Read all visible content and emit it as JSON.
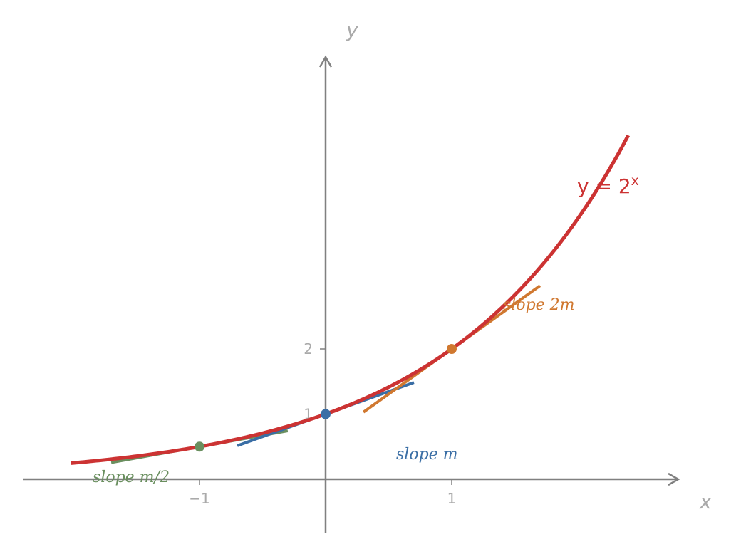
{
  "chart_data": {
    "type": "line",
    "title": "",
    "xlabel": "x",
    "ylabel": "y",
    "xlim": [
      -2.4,
      2.8
    ],
    "ylim": [
      -0.8,
      6.5
    ],
    "x_ticks": [
      {
        "value": -1,
        "label": "−1"
      },
      {
        "value": 1,
        "label": "1"
      }
    ],
    "y_ticks": [
      {
        "value": 1,
        "label": "1"
      },
      {
        "value": 2,
        "label": "2"
      }
    ],
    "curve": {
      "label_base": "y = 2",
      "label_exp": "x",
      "function": "2^x",
      "x_range": [
        -2.02,
        2.4
      ],
      "color": "#cc3333"
    },
    "tangents": [
      {
        "name": "slope m/2",
        "label": "slope m/2",
        "point": [
          -1,
          0.5
        ],
        "slope": 0.347,
        "x_range": [
          -1.7,
          -0.3
        ],
        "color": "#6a8f5f"
      },
      {
        "name": "slope m",
        "label": "slope m",
        "point": [
          0,
          1
        ],
        "slope": 0.693,
        "x_range": [
          -0.7,
          0.7
        ],
        "color": "#3a6ea5"
      },
      {
        "name": "slope 2m",
        "label": "slope 2m",
        "point": [
          1,
          2
        ],
        "slope": 1.386,
        "x_range": [
          0.3,
          1.7
        ],
        "color": "#d07830"
      }
    ],
    "grid": false,
    "legend": "none"
  },
  "colors": {
    "axis": "#808080",
    "tick_text": "#aaaaaa"
  }
}
